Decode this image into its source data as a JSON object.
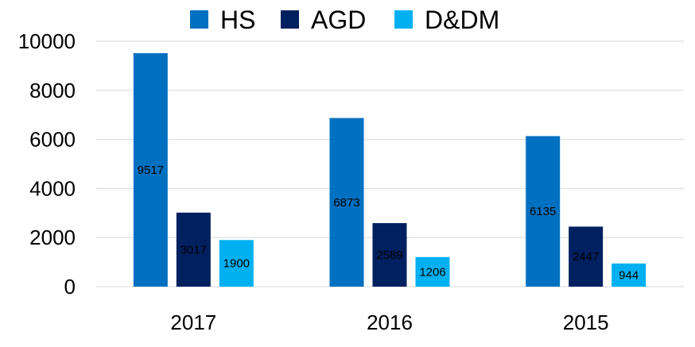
{
  "chart_data": {
    "type": "bar",
    "categories": [
      "2017",
      "2016",
      "2015"
    ],
    "series": [
      {
        "name": "HS",
        "color": "#0070c0",
        "values": [
          9517,
          6873,
          6135
        ]
      },
      {
        "name": "AGD",
        "color": "#002060",
        "values": [
          3017,
          2589,
          2447
        ]
      },
      {
        "name": "D&DM",
        "color": "#00b0f0",
        "values": [
          1900,
          1206,
          944
        ]
      }
    ],
    "title": "",
    "xlabel": "",
    "ylabel": "",
    "ylim": [
      0,
      10000
    ],
    "yticks": [
      0,
      2000,
      4000,
      6000,
      8000,
      10000
    ],
    "grid": true,
    "legend": "top",
    "data_labels": true
  }
}
